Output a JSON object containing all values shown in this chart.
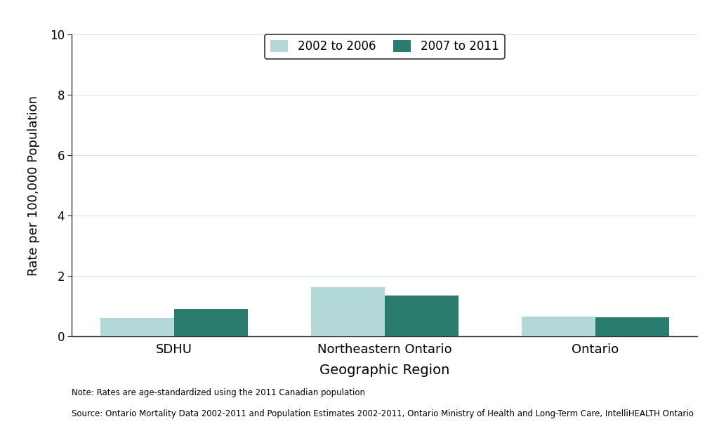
{
  "categories": [
    "SDHU",
    "Northeastern Ontario",
    "Ontario"
  ],
  "values_2002_2006": [
    0.6,
    1.62,
    0.65
  ],
  "values_2007_2011": [
    0.9,
    1.35,
    0.62
  ],
  "color_2002_2006": "#b2d8d8",
  "color_2007_2011": "#2a7d6e",
  "ylabel": "Rate per 100,000 Population",
  "xlabel": "Geographic Region",
  "legend_label_1": "2002 to 2006",
  "legend_label_2": "2007 to 2011",
  "ylim": [
    0,
    10
  ],
  "yticks": [
    0,
    2,
    4,
    6,
    8,
    10
  ],
  "bar_width": 0.35,
  "note_line1": "Note: Rates are age-standardized using the 2011 Canadian population",
  "note_line2": "Source: Ontario Mortality Data 2002-2011 and Population Estimates 2002-2011, Ontario Ministry of Health and Long-Term Care, IntelliHEALTH Ontario",
  "bg_color": "#ffffff",
  "grid_color": "#d0e8e8",
  "legend_edge_color": "#333333",
  "spine_color": "#333333"
}
